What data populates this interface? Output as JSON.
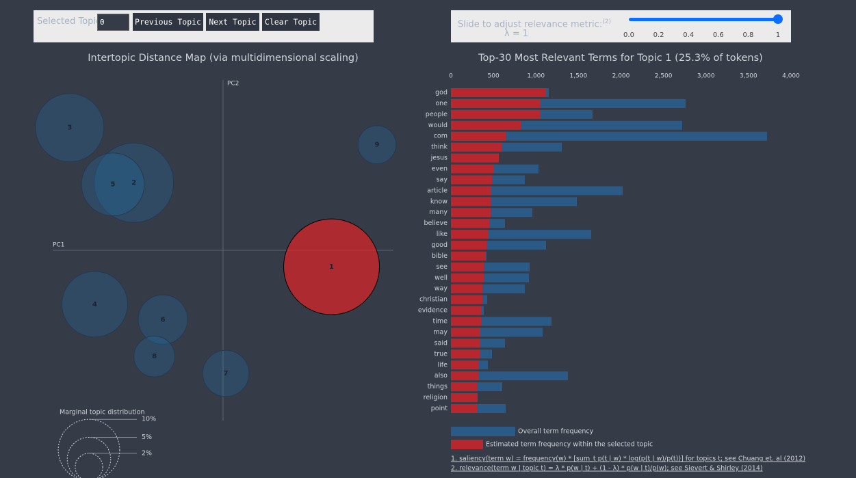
{
  "controls": {
    "topic_label": "Selected Topic:",
    "topic_value": "0",
    "buttons": [
      "Previous Topic",
      "Next Topic",
      "Clear Topic"
    ],
    "slider_label": "Slide to adjust relevance metric:",
    "slider_note": "(2)",
    "lambda_label": "λ = 1",
    "slider": {
      "value": 1,
      "xlim": [
        0,
        1
      ],
      "xticks": [
        {
          "value": 0,
          "label": "0.0"
        },
        {
          "value": 0.2,
          "label": "0.2"
        },
        {
          "value": 0.4,
          "label": "0.4"
        },
        {
          "value": 0.6,
          "label": "0.6"
        },
        {
          "value": 0.8,
          "label": "0.8"
        },
        1
      ]
    }
  },
  "chart_data": [
    {
      "type": "bubble",
      "title": "Intertopic Distance Map (via multidimensional scaling)",
      "x_label": "PC1",
      "y_label": "PC2",
      "categories": [
        "1",
        "2",
        "3",
        "4",
        "5",
        "6",
        "7",
        "8",
        "9"
      ],
      "x": [
        0.191,
        -0.157,
        -0.27,
        -0.226,
        -0.194,
        -0.106,
        0.005,
        -0.121,
        0.271
      ],
      "values": [
        -0.029,
        0.119,
        0.216,
        -0.095,
        0.116,
        -0.122,
        -0.217,
        -0.187,
        0.186
      ],
      "sizes": [
        25.3,
        17.4,
        12.9,
        11.9,
        10.9,
        6.7,
        5.9,
        4.6,
        4.0
      ],
      "colors": [
        "#d62728",
        "#1f77b4",
        "#1f77b4",
        "#1f77b4",
        "#1f77b4",
        "#1f77b4",
        "#1f77b4",
        "#1f77b4",
        "#1f77b4"
      ],
      "xlim": [
        -0.3,
        0.3
      ],
      "ylim": [
        -0.3,
        0.3
      ],
      "size_legend": {
        "title": "Marginal topic distribution",
        "values": [
          2,
          5,
          10
        ],
        "value_labels": [
          "2%",
          "5%",
          "10%"
        ]
      }
    },
    {
      "type": "bar",
      "orientation": "horizontal",
      "title": "Top-30 Most Relevant Terms for Topic 1 (25.3% of tokens)",
      "categories": [
        "god",
        "one",
        "people",
        "would",
        "com",
        "think",
        "jesus",
        "even",
        "say",
        "article",
        "know",
        "many",
        "believe",
        "like",
        "good",
        "bible",
        "see",
        "well",
        "way",
        "christian",
        "evidence",
        "time",
        "may",
        "said",
        "true",
        "life",
        "also",
        "things",
        "religion",
        "point"
      ],
      "series": [
        {
          "name": "Overall term frequency",
          "color": "#2b5a86",
          "values": [
            1151,
            2760,
            1666,
            2720,
            3718,
            1304,
            563,
            1030,
            869,
            2020,
            1481,
            958,
            636,
            1650,
            1119,
            419,
            926,
            918,
            869,
            427,
            386,
            1183,
            1078,
            636,
            483,
            435,
            1376,
            604,
            314,
            644
          ]
        },
        {
          "name": "Estimated term frequency within the selected topic",
          "color": "#b8272e",
          "values": [
            1119,
            1054,
            1046,
            821,
            644,
            596,
            563,
            499,
            483,
            475,
            467,
            467,
            451,
            443,
            419,
            411,
            386,
            386,
            370,
            370,
            354,
            354,
            346,
            338,
            338,
            330,
            330,
            314,
            314,
            314
          ]
        }
      ],
      "xlim": [
        0,
        4000
      ],
      "xticks": [
        0,
        500,
        {
          "value": 1000,
          "label": "1,000"
        },
        {
          "value": 1500,
          "label": "1,500"
        },
        {
          "value": 2000,
          "label": "2,000"
        },
        {
          "value": 2500,
          "label": "2,500"
        },
        {
          "value": 3000,
          "label": "3,000"
        },
        {
          "value": 3500,
          "label": "3,500"
        },
        {
          "value": 4000,
          "label": "4,000"
        }
      ]
    }
  ],
  "footnotes": [
    "1. saliency(term w) = frequency(w) * [sum_t p(t | w) * log(p(t | w)/p(t))] for topics t; see Chuang et. al (2012)",
    "2. relevance(term w | topic t) = λ * p(w | t) + (1 - λ) * p(w | t)/p(w); see Sievert & Shirley (2014)"
  ]
}
